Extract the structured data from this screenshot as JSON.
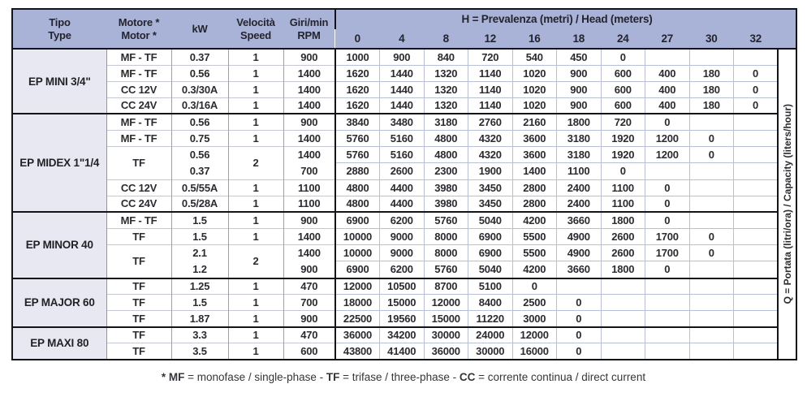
{
  "colors": {
    "header_bg": "#a9b3d8",
    "model_column_bg": "#e7e8f1",
    "border_dark": "#141418",
    "grid_light": "#b7c0d6"
  },
  "table": {
    "header": {
      "tipo_line1": "Tipo",
      "tipo_line2": "Type",
      "motore_line1": "Motore *",
      "motore_line2": "Motor *",
      "kw": "kW",
      "velocita_line1": "Velocità",
      "velocita_line2": "Speed",
      "rpm_line1": "Giri/min",
      "rpm_line2": "RPM",
      "h_label_bold": "H",
      "h_label_rest": " = Prevalenza (metri) / Head (meters)",
      "h_values": [
        "0",
        "4",
        "8",
        "12",
        "16",
        "18",
        "24",
        "27",
        "30",
        "32"
      ]
    },
    "q_label_bold": "Q",
    "q_label_rest": " = Portata (litri/ora) / Capacity (liters/hour)",
    "groups": [
      {
        "tipo": "EP MINI 3/4\"",
        "rows": [
          {
            "motore": "MF - TF",
            "kw": "0.37",
            "speed": "1",
            "rpm": "900",
            "q": [
              "1000",
              "900",
              "840",
              "720",
              "540",
              "450",
              "0",
              "",
              "",
              ""
            ]
          },
          {
            "motore": "MF - TF",
            "kw": "0.56",
            "speed": "1",
            "rpm": "1400",
            "q": [
              "1620",
              "1440",
              "1320",
              "1140",
              "1020",
              "900",
              "600",
              "400",
              "180",
              "0"
            ]
          },
          {
            "motore": "CC 12V",
            "kw": "0.3/30A",
            "speed": "1",
            "rpm": "1400",
            "q": [
              "1620",
              "1440",
              "1320",
              "1140",
              "1020",
              "900",
              "600",
              "400",
              "180",
              "0"
            ]
          },
          {
            "motore": "CC 24V",
            "kw": "0.3/16A",
            "speed": "1",
            "rpm": "1400",
            "q": [
              "1620",
              "1440",
              "1320",
              "1140",
              "1020",
              "900",
              "600",
              "400",
              "180",
              "0"
            ]
          }
        ]
      },
      {
        "tipo": "EP MIDEX 1\"1/4",
        "rows": [
          {
            "motore": "MF - TF",
            "kw": "0.56",
            "speed": "1",
            "rpm": "900",
            "q": [
              "3840",
              "3480",
              "3180",
              "2760",
              "2160",
              "1800",
              "720",
              "0",
              "",
              ""
            ]
          },
          {
            "motore": "MF - TF",
            "kw": "0.75",
            "speed": "1",
            "rpm": "1400",
            "q": [
              "5760",
              "5160",
              "4800",
              "4320",
              "3600",
              "3180",
              "1920",
              "1200",
              "0",
              ""
            ]
          },
          {
            "motore": "TF",
            "dual": true,
            "kw": [
              "0.56",
              "0.37"
            ],
            "speed": "2",
            "rpm": [
              "1400",
              "700"
            ],
            "q": [
              [
                "5760",
                "5160",
                "4800",
                "4320",
                "3600",
                "3180",
                "1920",
                "1200",
                "0",
                ""
              ],
              [
                "2880",
                "2600",
                "2300",
                "1900",
                "1400",
                "1100",
                "0",
                "",
                "",
                ""
              ]
            ]
          },
          {
            "motore": "CC 12V",
            "kw": "0.5/55A",
            "speed": "1",
            "rpm": "1100",
            "q": [
              "4800",
              "4400",
              "3980",
              "3450",
              "2800",
              "2400",
              "1100",
              "0",
              "",
              ""
            ]
          },
          {
            "motore": "CC 24V",
            "kw": "0.5/28A",
            "speed": "1",
            "rpm": "1100",
            "q": [
              "4800",
              "4400",
              "3980",
              "3450",
              "2800",
              "2400",
              "1100",
              "0",
              "",
              ""
            ]
          }
        ]
      },
      {
        "tipo": "EP MINOR 40",
        "rows": [
          {
            "motore": "MF - TF",
            "kw": "1.5",
            "speed": "1",
            "rpm": "900",
            "q": [
              "6900",
              "6200",
              "5760",
              "5040",
              "4200",
              "3660",
              "1800",
              "0",
              "",
              ""
            ]
          },
          {
            "motore": "TF",
            "kw": "1.5",
            "speed": "1",
            "rpm": "1400",
            "q": [
              "10000",
              "9000",
              "8000",
              "6900",
              "5500",
              "4900",
              "2600",
              "1700",
              "0",
              ""
            ]
          },
          {
            "motore": "TF",
            "dual": true,
            "kw": [
              "2.1",
              "1.2"
            ],
            "speed": "2",
            "rpm": [
              "1400",
              "900"
            ],
            "q": [
              [
                "10000",
                "9000",
                "8000",
                "6900",
                "5500",
                "4900",
                "2600",
                "1700",
                "0",
                ""
              ],
              [
                "6900",
                "6200",
                "5760",
                "5040",
                "4200",
                "3660",
                "1800",
                "0",
                "",
                ""
              ]
            ]
          }
        ]
      },
      {
        "tipo": "EP MAJOR 60",
        "rows": [
          {
            "motore": "TF",
            "kw": "1.25",
            "speed": "1",
            "rpm": "470",
            "q": [
              "12000",
              "10500",
              "8700",
              "5100",
              "0",
              "",
              "",
              "",
              "",
              ""
            ]
          },
          {
            "motore": "TF",
            "kw": "1.5",
            "speed": "1",
            "rpm": "700",
            "q": [
              "18000",
              "15000",
              "12000",
              "8400",
              "2500",
              "0",
              "",
              "",
              "",
              ""
            ]
          },
          {
            "motore": "TF",
            "kw": "1.87",
            "speed": "1",
            "rpm": "900",
            "q": [
              "22500",
              "19560",
              "15000",
              "11220",
              "3000",
              "0",
              "",
              "",
              "",
              ""
            ]
          }
        ]
      },
      {
        "tipo": "EP MAXI 80",
        "rows": [
          {
            "motore": "TF",
            "kw": "3.3",
            "speed": "1",
            "rpm": "470",
            "q": [
              "36000",
              "34200",
              "30000",
              "24000",
              "12000",
              "0",
              "",
              "",
              "",
              ""
            ]
          },
          {
            "motore": "TF",
            "kw": "3.5",
            "speed": "1",
            "rpm": "600",
            "q": [
              "43800",
              "41400",
              "36000",
              "30000",
              "16000",
              "0",
              "",
              "",
              "",
              ""
            ]
          }
        ]
      }
    ]
  },
  "footnote": {
    "b1": "* MF",
    "t1": " = monofase / single-phase - ",
    "b2": "TF",
    "t2": " = trifase / three-phase - ",
    "b3": "CC",
    "t3": " = corrente continua / direct current"
  }
}
